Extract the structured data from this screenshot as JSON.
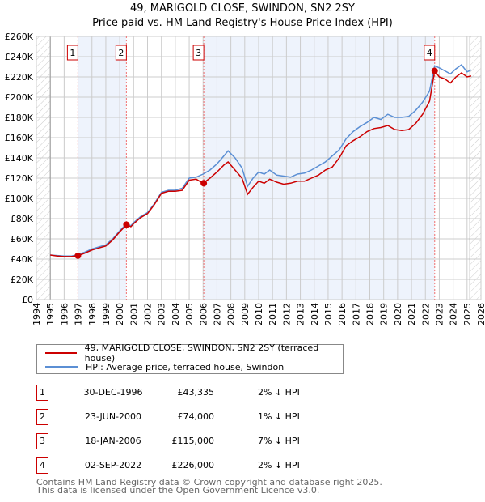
{
  "title": "49, MARIGOLD CLOSE, SWINDON, SN2 2SY",
  "subtitle": "Price paid vs. HM Land Registry's House Price Index (HPI)",
  "chart_data": {
    "type": "line",
    "title": "49, MARIGOLD CLOSE, SWINDON, SN2 2SY",
    "subtitle": "Price paid vs. HM Land Registry's House Price Index (HPI)",
    "xlim": [
      1994,
      2026
    ],
    "ylim": [
      0,
      260000
    ],
    "yticks": [
      0,
      20000,
      40000,
      60000,
      80000,
      100000,
      120000,
      140000,
      160000,
      180000,
      200000,
      220000,
      240000,
      260000
    ],
    "ytick_labels": [
      "£0",
      "£20K",
      "£40K",
      "£60K",
      "£80K",
      "£100K",
      "£120K",
      "£140K",
      "£160K",
      "£180K",
      "£200K",
      "£220K",
      "£240K",
      "£260K"
    ],
    "xticks": [
      "1994",
      "1995",
      "1996",
      "1997",
      "1998",
      "1999",
      "2000",
      "2001",
      "2002",
      "2003",
      "2004",
      "2005",
      "2006",
      "2007",
      "2008",
      "2009",
      "2010",
      "2011",
      "2012",
      "2013",
      "2014",
      "2015",
      "2016",
      "2017",
      "2018",
      "2019",
      "2020",
      "2021",
      "2022",
      "2023",
      "2024",
      "2025",
      "2026"
    ],
    "grid": true,
    "x": [
      1995.0,
      1995.5,
      1996.0,
      1996.5,
      1997.0,
      1997.5,
      1998.0,
      1998.5,
      1999.0,
      1999.5,
      2000.0,
      2000.5,
      2000.8,
      2001.0,
      2001.5,
      2002.0,
      2002.5,
      2003.0,
      2003.5,
      2004.0,
      2004.5,
      2005.0,
      2005.5,
      2006.0,
      2006.5,
      2007.0,
      2007.5,
      2007.8,
      2008.3,
      2008.8,
      2009.2,
      2009.6,
      2010.0,
      2010.4,
      2010.8,
      2011.3,
      2011.8,
      2012.3,
      2012.8,
      2013.3,
      2013.8,
      2014.3,
      2014.8,
      2015.3,
      2015.8,
      2016.3,
      2016.8,
      2017.3,
      2017.8,
      2018.3,
      2018.8,
      2019.3,
      2019.8,
      2020.3,
      2020.8,
      2021.3,
      2021.8,
      2022.3,
      2022.67,
      2023.0,
      2023.4,
      2023.8,
      2024.2,
      2024.6,
      2025.0,
      2025.3
    ],
    "series": [
      {
        "name": "49, MARIGOLD CLOSE, SWINDON, SN2 2SY (terraced house)",
        "color": "#cc0000",
        "values": [
          44000,
          43000,
          42500,
          42500,
          43300,
          46000,
          49000,
          51000,
          53000,
          59000,
          67000,
          74000,
          72000,
          75000,
          81000,
          85000,
          94000,
          105000,
          107000,
          107000,
          108000,
          118000,
          119000,
          115000,
          120000,
          126000,
          133000,
          136000,
          128000,
          120000,
          104000,
          111000,
          117000,
          115000,
          119000,
          116000,
          114000,
          115000,
          117000,
          117000,
          120000,
          123000,
          128000,
          131000,
          140000,
          152000,
          157000,
          161000,
          166000,
          169000,
          170000,
          172000,
          168000,
          167000,
          168000,
          174000,
          183000,
          196000,
          226000,
          220000,
          218000,
          214000,
          220000,
          224000,
          220000,
          221000
        ]
      },
      {
        "name": "HPI: Average price, terraced house, Swindon",
        "color": "#5b8fd4",
        "values": [
          44000,
          43500,
          43000,
          43000,
          44500,
          47000,
          50000,
          52000,
          54000,
          60000,
          68000,
          75000,
          73000,
          76000,
          82000,
          86000,
          95000,
          106000,
          108000,
          108000,
          110000,
          120000,
          121000,
          124000,
          128000,
          134000,
          142000,
          147000,
          140000,
          130000,
          112000,
          120000,
          126000,
          124000,
          128000,
          123000,
          122000,
          121000,
          124000,
          125000,
          128000,
          132000,
          136000,
          142000,
          148000,
          159000,
          166000,
          171000,
          175000,
          180000,
          178000,
          183000,
          180000,
          180000,
          181000,
          187000,
          195000,
          206000,
          231000,
          229000,
          226000,
          223000,
          228000,
          232000,
          225000,
          227000
        ]
      }
    ],
    "sales": [
      {
        "id": "1",
        "x": 1996.99,
        "value": 43335,
        "date": "30-DEC-1996",
        "price": "£43,335",
        "hpi": "2% ↓ HPI"
      },
      {
        "id": "2",
        "x": 2000.48,
        "value": 74000,
        "date": "23-JUN-2000",
        "price": "£74,000",
        "hpi": "1% ↓ HPI"
      },
      {
        "id": "3",
        "x": 2006.05,
        "value": 115000,
        "date": "18-JAN-2006",
        "price": "£115,000",
        "hpi": "7% ↓ HPI"
      },
      {
        "id": "4",
        "x": 2022.67,
        "value": 226000,
        "date": "02-SEP-2022",
        "price": "£226,000",
        "hpi": "2% ↓ HPI"
      }
    ],
    "legend_placement": "below"
  },
  "legend": {
    "red": "49, MARIGOLD CLOSE, SWINDON, SN2 2SY (terraced house)",
    "blue": "HPI: Average price, terraced house, Swindon"
  },
  "footer": {
    "line1": "Contains HM Land Registry data © Crown copyright and database right 2025.",
    "line2": "This data is licensed under the Open Government Licence v3.0."
  }
}
